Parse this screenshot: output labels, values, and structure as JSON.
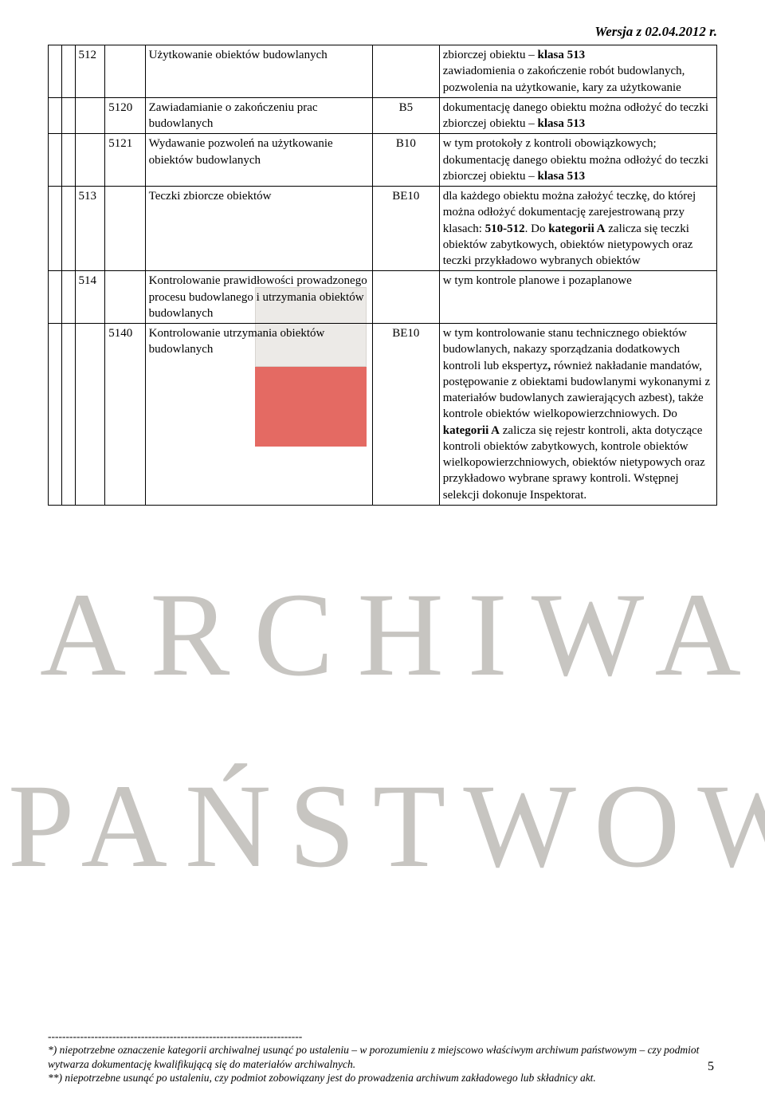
{
  "version_text": "Wersja z 02.04.2012 r.",
  "page_number": "5",
  "footer": {
    "dashes": "-----------------------------------------------------------------------",
    "note1_prefix": "*) ",
    "note1_body": "niepotrzebne oznaczenie kategorii archiwalnej usunąć po ustaleniu – w porozumieniu z miejscowo właściwym archiwum państwowym – czy podmiot wytwarza dokumentację kwalifikującą się do materiałów archiwalnych.",
    "note2_prefix": "**) ",
    "note2_body": "niepotrzebne usunąć po ustaleniu, czy podmiot zobowiązany jest do prowadzenia archiwum zakładowego lub składnicy akt."
  },
  "rows": [
    {
      "c2": "512",
      "desc": "Użytkowanie obiektów budowlanych",
      "code": "",
      "right_html": "zbiorczej obiektu – <b>klasa 513</b><br>zawiadomienia o zakończenie robót budowlanych, pozwolenia na użytkowanie, kary za użytkowanie"
    },
    {
      "c3": "5120",
      "desc": "Zawiadamianie o zakończeniu prac budowlanych",
      "code": "B5",
      "right_html": "dokumentację danego obiektu można odłożyć do teczki zbiorczej obiektu – <b>klasa 513</b>"
    },
    {
      "c3": "5121",
      "desc": "Wydawanie pozwoleń na użytkowanie obiektów budowlanych",
      "code": "B10",
      "right_html": "w tym protokoły z kontroli obowiązkowych; dokumentację danego obiektu można odłożyć do teczki zbiorczej obiektu – <b>klasa 513</b>"
    },
    {
      "c2": "513",
      "desc": "Teczki zbiorcze obiektów",
      "code": "BE10",
      "right_html": "dla każdego obiektu można założyć teczkę, do której można odłożyć dokumentację zarejestrowaną przy klasach: <b>510-512</b>. Do <b>kategorii A</b> zalicza się teczki obiektów zabytkowych, obiektów nietypowych oraz teczki przykładowo wybranych obiektów"
    },
    {
      "c2": "514",
      "desc": "Kontrolowanie prawidłowości prowadzonego procesu budowlanego i utrzymania obiektów budowlanych",
      "code": "",
      "right_html": "w tym kontrole planowe i pozaplanowe"
    },
    {
      "c3": "5140",
      "desc": "Kontrolowanie utrzymania obiektów budowlanych",
      "code": "BE10",
      "right_html": "w tym kontrolowanie stanu technicznego obiektów budowlanych, nakazy sporządzania dodatkowych kontroli lub ekspertyz<b>,</b> również nakładanie mandatów, postępowanie z obiektami budowlanymi wykonanymi z materiałów budowlanych zawierających azbest), także kontrole obiektów wielkopowierzchniowych. Do <b>kategorii A</b> zalicza się rejestr kontroli, akta dotyczące kontroli obiektów zabytkowych, kontrole obiektów wielkopowierzchniowych, obiektów nietypowych oraz przykładowo wybrane sprawy kontroli. Wstępnej selekcji dokonuje Inspektorat."
    }
  ]
}
